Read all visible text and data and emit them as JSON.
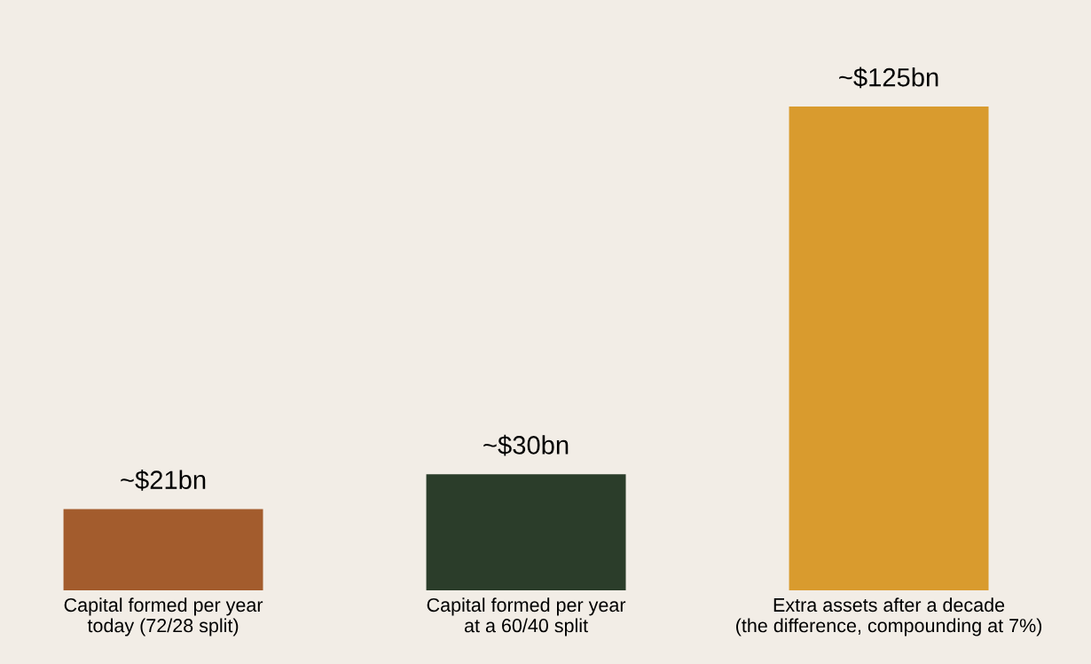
{
  "chart_data": {
    "type": "bar",
    "categories": [
      "Capital formed per year\ntoday (72/28 split)",
      "Capital formed per year\nat a 60/40 split",
      "Extra assets after a decade\n(the difference, compounding at 7%)"
    ],
    "values": [
      21,
      30,
      125
    ],
    "value_labels": [
      "~$21bn",
      "~$30bn",
      "~$125bn"
    ],
    "colors": [
      "#a35c2d",
      "#2b3d2a",
      "#d99b2e"
    ],
    "grid": false,
    "legend": false
  }
}
